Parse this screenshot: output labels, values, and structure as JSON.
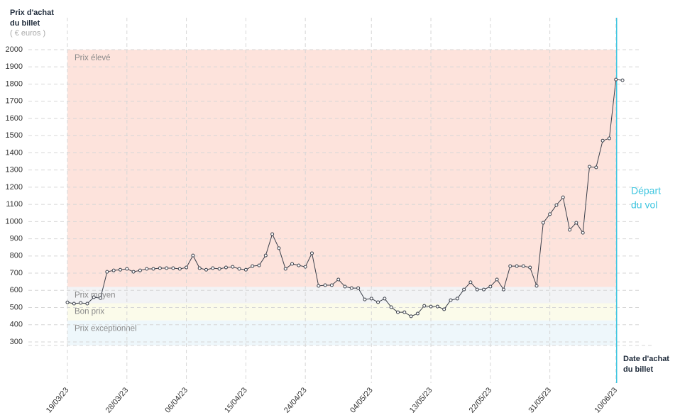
{
  "chart_data": {
    "type": "line",
    "y_label": [
      "Prix d'achat",
      "du billet"
    ],
    "y_unit": "( € euros )",
    "x_label": [
      "Date d'achat",
      "du billet"
    ],
    "departure_label": [
      "Départ",
      "du vol"
    ],
    "ylim": [
      300,
      2000
    ],
    "yticks": [
      300,
      400,
      500,
      600,
      700,
      800,
      900,
      1000,
      1100,
      1200,
      1300,
      1400,
      1500,
      1600,
      1700,
      1800,
      1900,
      2000
    ],
    "grid": true,
    "color": "#3a3f4a",
    "bands": [
      {
        "label": "Prix élevé",
        "from": 620,
        "to": 2000,
        "color": "#fde3dc"
      },
      {
        "label": "Prix moyen",
        "from": 525,
        "to": 620,
        "color": "#f2f3f5"
      },
      {
        "label": "Bon prix",
        "from": 425,
        "to": 525,
        "color": "#fbfbea"
      },
      {
        "label": "Prix exceptionnel",
        "from": 280,
        "to": 425,
        "color": "#eef7fb"
      }
    ],
    "categories": [
      "19/03/23",
      null,
      null,
      null,
      null,
      null,
      null,
      null,
      null,
      "28/03/23",
      null,
      null,
      null,
      null,
      null,
      null,
      null,
      null,
      "06/04/23",
      null,
      null,
      null,
      null,
      null,
      null,
      null,
      null,
      "15/04/23",
      null,
      null,
      null,
      null,
      null,
      null,
      null,
      null,
      "24/04/23",
      null,
      null,
      null,
      null,
      null,
      null,
      null,
      null,
      null,
      "04/05/23",
      null,
      null,
      null,
      null,
      null,
      null,
      null,
      null,
      "13/05/23",
      null,
      null,
      null,
      null,
      null,
      null,
      null,
      null,
      "22/05/23",
      null,
      null,
      null,
      null,
      null,
      null,
      null,
      null,
      "31/05/23",
      null,
      null,
      null,
      null,
      null,
      null,
      null,
      null,
      null,
      "10/06/23",
      null
    ],
    "values": [
      530,
      523,
      527,
      523,
      560,
      555,
      708,
      716,
      720,
      725,
      708,
      716,
      725,
      725,
      729,
      729,
      729,
      725,
      733,
      803,
      729,
      720,
      729,
      725,
      733,
      737,
      725,
      720,
      741,
      745,
      803,
      927,
      845,
      725,
      754,
      745,
      737,
      816,
      626,
      630,
      630,
      663,
      622,
      613,
      613,
      547,
      552,
      531,
      552,
      502,
      473,
      473,
      449,
      465,
      510,
      506,
      506,
      490,
      543,
      552,
      605,
      647,
      605,
      605,
      622,
      663,
      605,
      741,
      741,
      741,
      733,
      626,
      993,
      1043,
      1096,
      1141,
      952,
      993,
      935,
      1319,
      1315,
      1471,
      1484,
      1826,
      1822
    ]
  }
}
